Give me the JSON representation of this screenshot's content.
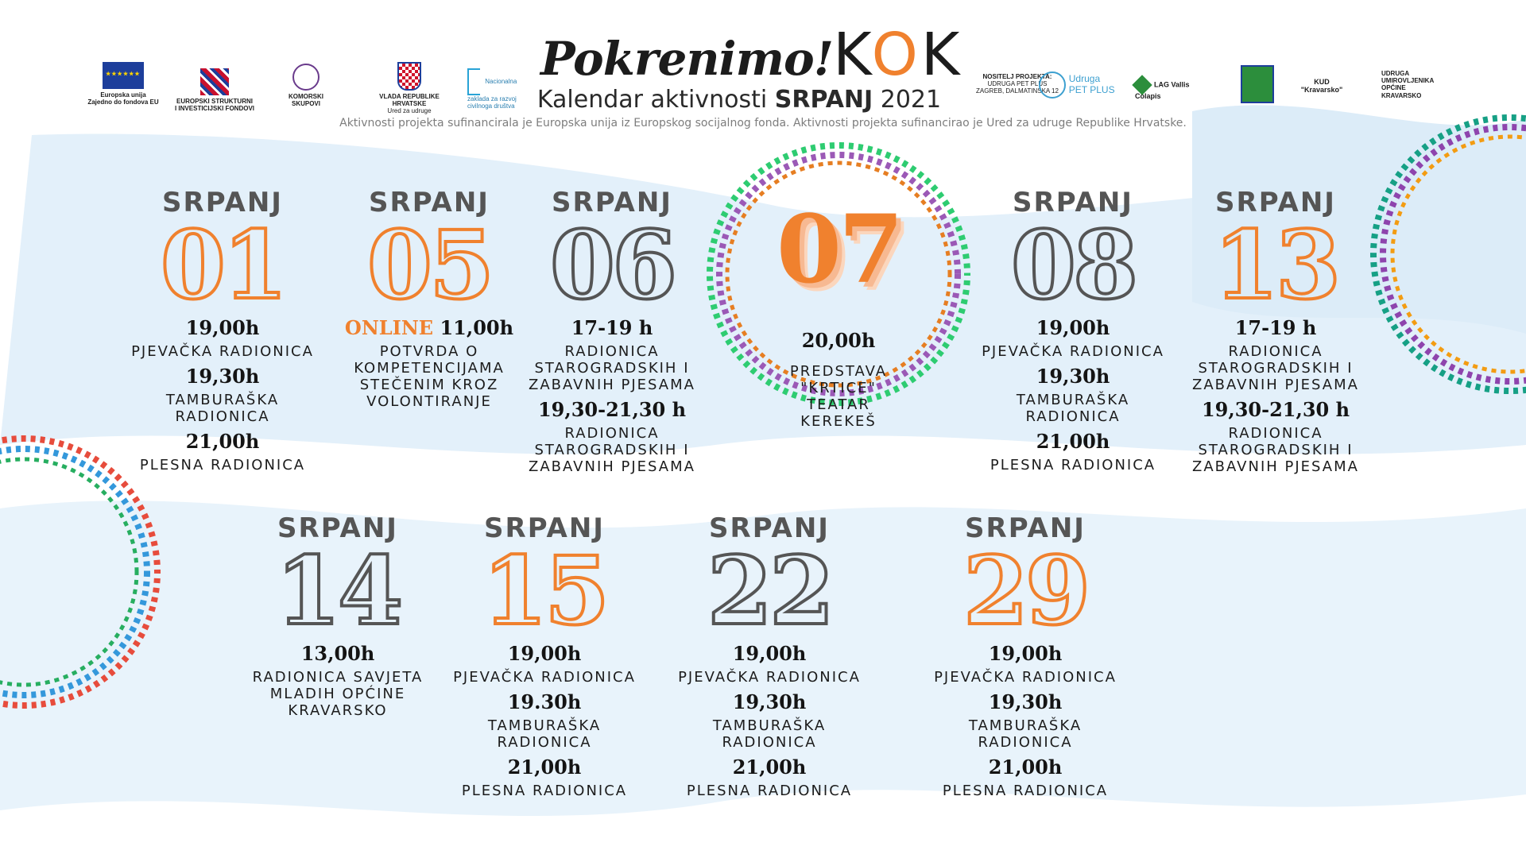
{
  "header": {
    "logo_main": "Pokrenimo!",
    "logo_k1": "K",
    "logo_o": "O",
    "logo_k2": "K",
    "subtitle_prefix": "Kalendar aktivnosti ",
    "subtitle_month": "SRPANJ",
    "subtitle_year": " 2021",
    "funding_note": "Aktivnosti projekta sufinancirala je Europska unija iz Europskog socijalnog fonda.  Aktivnosti projekta sufinancirao je Ured za udruge Republike Hrvatske.",
    "partners_left": [
      {
        "line1": "Europska unija",
        "line2": "Zajedno do fondova EU"
      },
      {
        "line1": "EUROPSKI STRUKTURNI",
        "line2": "I INVESTICIJSKI FONDOVI"
      },
      {
        "line1": "KOMORSKI",
        "line2": "SKUPOVI"
      },
      {
        "line1": "VLADA REPUBLIKE HRVATSKE",
        "line2": "Ured za udruge"
      },
      {
        "line1": "Nacionalna zaklada za razvoj civilnoga društva",
        "line2": ""
      }
    ],
    "partners_right": [
      {
        "line1": "NOSITELJ PROJEKTA:",
        "line2": "UDRUGA PET PLUS",
        "line3": "ZAGREB, DALMATINSKA 12"
      },
      {
        "line1": "Udruga",
        "line2": "PET PLUS"
      },
      {
        "line1": "LAG Vallis Colapis"
      },
      {
        "line1": "KUD",
        "line2": "\"Kravarsko\""
      },
      {
        "line1": "UDRUGA",
        "line2": "UMIROVLJENIKA",
        "line3": "OPĆINE",
        "line4": "KRAVARSKO"
      }
    ]
  },
  "colors": {
    "accent": "#f0812e",
    "outline_gray": "#555555",
    "wave_blue": "#e3f0fa"
  },
  "events": [
    {
      "month": "SRPANJ",
      "day": "01",
      "style": "orange",
      "items": [
        {
          "time": "19,00h",
          "label": "PJEVAČKA RADIONICA"
        },
        {
          "time": "19,30h",
          "label": "TAMBURAŠKA RADIONICA"
        },
        {
          "time": "21,00h",
          "label": "PLESNA RADIONICA"
        }
      ]
    },
    {
      "month": "SRPANJ",
      "day": "05",
      "style": "orange",
      "items": [
        {
          "prefix": "ONLINE",
          "time": " 11,00h",
          "label": "POTVRDA O KOMPETENCIJAMA STEČENIM KROZ VOLONTIRANJE"
        }
      ]
    },
    {
      "month": "SRPANJ",
      "day": "06",
      "style": "gray",
      "items": [
        {
          "time": "17-19 h",
          "label": "RADIONICA STAROGRADSKIH I ZABAVNIH PJESAMA"
        },
        {
          "time": "19,30-21,30 h",
          "label": "RADIONICA STAROGRADSKIH I ZABAVNIH PJESAMA"
        }
      ]
    },
    {
      "month": "",
      "day": "07",
      "style": "filled",
      "items": [
        {
          "time": "20,00h",
          "label": "PREDSTAVA \"KRTICE\" TEATAR KEREKEŠ"
        }
      ]
    },
    {
      "month": "SRPANJ",
      "day": "08",
      "style": "gray",
      "items": [
        {
          "time": "19,00h",
          "label": "PJEVAČKA RADIONICA"
        },
        {
          "time": "19,30h",
          "label": "TAMBURAŠKA RADIONICA"
        },
        {
          "time": "21,00h",
          "label": "PLESNA RADIONICA"
        }
      ]
    },
    {
      "month": "SRPANJ",
      "day": "13",
      "style": "orange",
      "items": [
        {
          "time": "17-19 h",
          "label": "RADIONICA STAROGRADSKIH I ZABAVNIH PJESAMA"
        },
        {
          "time": "19,30-21,30 h",
          "label": "RADIONICA STAROGRADSKIH I ZABAVNIH PJESAMA"
        }
      ]
    },
    {
      "month": "SRPANJ",
      "day": "14",
      "style": "gray",
      "items": [
        {
          "time": "13,00h",
          "label": "RADIONICA SAVJETA MLADIH OPĆINE KRAVARSKO"
        }
      ]
    },
    {
      "month": "SRPANJ",
      "day": "15",
      "style": "orange",
      "items": [
        {
          "time": "19,00h",
          "label": "PJEVAČKA RADIONICA"
        },
        {
          "time": "19.30h",
          "label": "TAMBURAŠKA RADIONICA"
        },
        {
          "time": "21,00h",
          "label": "PLESNA RADIONICA"
        }
      ]
    },
    {
      "month": "SRPANJ",
      "day": "22",
      "style": "gray",
      "items": [
        {
          "time": "19,00h",
          "label": "PJEVAČKA RADIONICA"
        },
        {
          "time": "19,30h",
          "label": "TAMBURAŠKA RADIONICA"
        },
        {
          "time": "21,00h",
          "label": "PLESNA RADIONICA"
        }
      ]
    },
    {
      "month": "SRPANJ",
      "day": "29",
      "style": "orange",
      "items": [
        {
          "time": "19,00h",
          "label": "PJEVAČKA RADIONICA"
        },
        {
          "time": "19,30h",
          "label": "TAMBURAŠKA RADIONICA"
        },
        {
          "time": "21,00h",
          "label": "PLESNA RADIONICA"
        }
      ]
    }
  ]
}
